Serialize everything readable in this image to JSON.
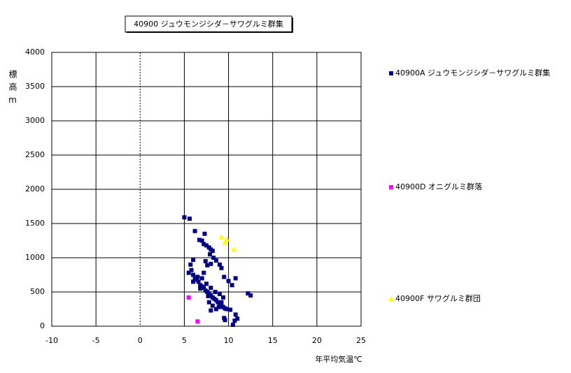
{
  "chart_data": {
    "type": "scatter",
    "title": "40900 ジュウモンジシダ－サワグルミ群集",
    "x_label": "年平均気温℃",
    "y_label": "標高m",
    "xlim": [
      -10,
      25
    ],
    "xticks": [
      -10,
      -5,
      0,
      5,
      10,
      15,
      20,
      25
    ],
    "ylim": [
      0,
      4000
    ],
    "yticks": [
      0,
      500,
      1000,
      1500,
      2000,
      2500,
      3000,
      3500,
      4000
    ],
    "grid": true,
    "legend": "right",
    "series": [
      {
        "name": "40900A ジュウモンジシダ－サワグルミ群集",
        "color": "#000080",
        "marker": "square",
        "x": [
          5.0,
          5.6,
          6.2,
          6.7,
          7.0,
          7.3,
          7.2,
          7.5,
          7.8,
          8.0,
          8.2,
          7.9,
          8.3,
          8.6,
          9.0,
          9.2,
          9.5,
          10.0,
          10.4,
          10.8,
          6.0,
          5.7,
          7.4,
          7.6,
          8.0,
          5.5,
          5.8,
          6.0,
          6.2,
          6.4,
          6.6,
          6.8,
          7.0,
          7.2,
          7.4,
          7.6,
          7.8,
          8.0,
          8.2,
          8.4,
          8.6,
          8.8,
          9.0,
          9.2,
          9.4,
          9.6,
          9.8,
          10.2,
          6.0,
          6.5,
          7.2,
          7.0,
          7.5,
          8.0,
          8.5,
          9.0,
          9.4,
          7.8,
          8.2,
          8.0,
          8.6,
          9.5,
          9.6,
          10.5,
          10.8,
          11.0,
          10.7,
          12.2,
          12.5,
          6.8,
          7.7,
          8.9,
          9.2
        ],
        "y": [
          1590,
          1570,
          1390,
          1260,
          1250,
          1350,
          1200,
          1180,
          1150,
          1120,
          1100,
          1050,
          1000,
          960,
          900,
          850,
          720,
          660,
          600,
          700,
          970,
          900,
          950,
          890,
          910,
          780,
          820,
          750,
          700,
          680,
          650,
          600,
          580,
          560,
          520,
          500,
          480,
          450,
          420,
          400,
          380,
          350,
          320,
          300,
          280,
          260,
          250,
          240,
          650,
          720,
          780,
          700,
          620,
          560,
          500,
          470,
          420,
          350,
          300,
          230,
          250,
          120,
          90,
          20,
          170,
          110,
          80,
          480,
          450,
          550,
          440,
          280,
          350
        ]
      },
      {
        "name": "40900D オニグルミ群落",
        "color": "#ff00ff",
        "marker": "square",
        "x": [
          5.5,
          6.5
        ],
        "y": [
          420,
          70
        ]
      },
      {
        "name": "40900F サワグルミ群団",
        "color": "#ffff00",
        "marker": "triangle",
        "x": [
          9.2,
          9.8,
          9.6,
          10.6
        ],
        "y": [
          1300,
          1270,
          1220,
          1120
        ]
      }
    ]
  }
}
